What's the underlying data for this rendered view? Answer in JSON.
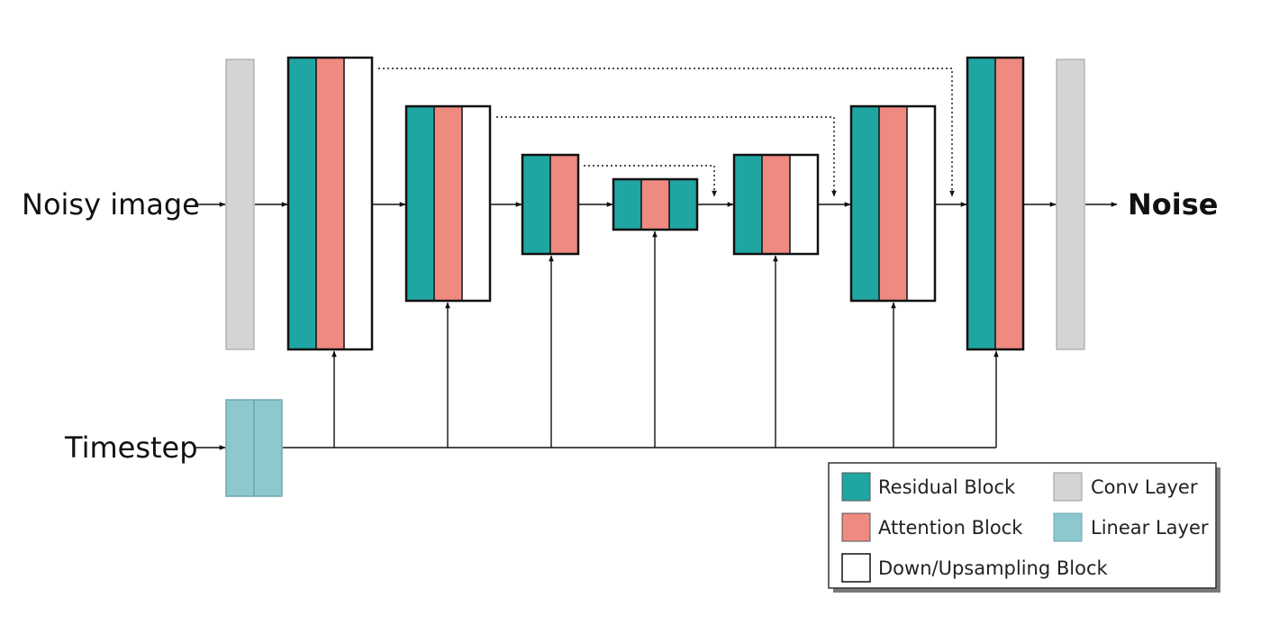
{
  "labels": {
    "input": "Noisy image",
    "output": "Noise",
    "timestep": "Timestep"
  },
  "legend": {
    "items": [
      {
        "key": "residual",
        "label": "Residual Block"
      },
      {
        "key": "conv",
        "label": "Conv Layer"
      },
      {
        "key": "attention",
        "label": "Attention Block"
      },
      {
        "key": "linear",
        "label": "Linear Layer"
      },
      {
        "key": "sampling",
        "label": "Down/Upsampling Block"
      }
    ]
  },
  "colors": {
    "residual": "#1fa6a3",
    "attention": "#ee8a80",
    "sampling": "#ffffff",
    "conv": "#d4d4d4",
    "linear": "#8ec8cf"
  }
}
